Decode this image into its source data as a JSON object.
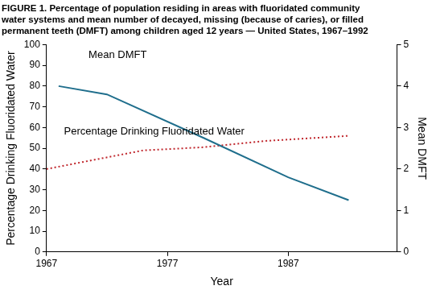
{
  "chart_data": {
    "type": "line",
    "title": [
      "FIGURE 1. Percentage of population residing in areas with fluoridated community",
      "water systems and mean number of decayed, missing (because of caries), or filled",
      "permanent teeth (DMFT) among children aged 12 years — United States, 1967–1992"
    ],
    "x_label": "Year",
    "y_label": "Percentage Drinking Fluoridated Water",
    "y2_label": "Mean DMFT",
    "xlim": [
      1967,
      1996
    ],
    "xticks": [
      1967,
      1977,
      1987
    ],
    "ylim": [
      0,
      100
    ],
    "yticks": [
      0,
      10,
      20,
      30,
      40,
      50,
      60,
      70,
      80,
      90,
      100
    ],
    "y2lim": [
      0,
      5
    ],
    "y2ticks": [
      0,
      1,
      2,
      3,
      4,
      5
    ],
    "grid": false,
    "series": [
      {
        "name": "Mean DMFT",
        "color": "#1f6e8c",
        "axis": "y2",
        "line_style": "solid",
        "marker": "none",
        "x": [
          1968,
          1972,
          1980,
          1987,
          1992
        ],
        "values": [
          4.0,
          3.8,
          2.75,
          1.8,
          1.25
        ]
      },
      {
        "name": "Percentage Drinking Fluoridated Water",
        "color": "#c0272d",
        "line_style": "dotted",
        "marker": "none",
        "x": [
          1967,
          1975,
          1980,
          1985,
          1992
        ],
        "values": [
          40,
          49,
          50.5,
          53.5,
          56
        ]
      }
    ]
  }
}
